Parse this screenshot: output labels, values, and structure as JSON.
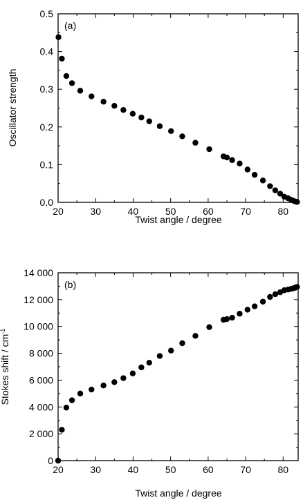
{
  "chart_data": [
    {
      "type": "scatter",
      "panel_label": "(a)",
      "xlabel": "Twist angle / degree",
      "ylabel": "Oscillator strength",
      "ylabel_sup": "",
      "xlim": [
        20,
        84
      ],
      "ylim": [
        0,
        0.5
      ],
      "x_ticks": [
        20,
        30,
        40,
        50,
        60,
        70,
        80
      ],
      "y_ticks": [
        0.0,
        0.1,
        0.2,
        0.3,
        0.4,
        0.5
      ],
      "x_tick_labels": [
        "20",
        "30",
        "40",
        "50",
        "60",
        "70",
        "80"
      ],
      "y_tick_labels": [
        "0.0",
        "0.1",
        "0.2",
        "0.3",
        "0.4",
        "0.5"
      ],
      "grid": false,
      "marker_color": "#000000",
      "points": [
        [
          20.1,
          0.438
        ],
        [
          21.0,
          0.381
        ],
        [
          22.2,
          0.335
        ],
        [
          23.7,
          0.316
        ],
        [
          25.9,
          0.296
        ],
        [
          28.9,
          0.281
        ],
        [
          32.1,
          0.267
        ],
        [
          35.0,
          0.256
        ],
        [
          37.4,
          0.245
        ],
        [
          39.9,
          0.235
        ],
        [
          42.2,
          0.225
        ],
        [
          44.3,
          0.215
        ],
        [
          47.1,
          0.202
        ],
        [
          50.1,
          0.189
        ],
        [
          53.1,
          0.175
        ],
        [
          56.6,
          0.158
        ],
        [
          60.3,
          0.141
        ],
        [
          64.1,
          0.122
        ],
        [
          65.0,
          0.119
        ],
        [
          66.4,
          0.112
        ],
        [
          68.4,
          0.103
        ],
        [
          70.5,
          0.087
        ],
        [
          72.4,
          0.073
        ],
        [
          74.6,
          0.058
        ],
        [
          76.5,
          0.043
        ],
        [
          77.9,
          0.032
        ],
        [
          79.2,
          0.023
        ],
        [
          80.3,
          0.015
        ],
        [
          81.3,
          0.011
        ],
        [
          82.1,
          0.007
        ],
        [
          82.8,
          0.004
        ],
        [
          83.3,
          0.002
        ],
        [
          83.7,
          0.001
        ]
      ]
    },
    {
      "type": "scatter",
      "panel_label": "(b)",
      "xlabel": "Twist angle / degree",
      "ylabel": "Stokes shift / cm",
      "ylabel_sup": "-1",
      "xlim": [
        20,
        84
      ],
      "ylim": [
        0,
        14000
      ],
      "x_ticks": [
        20,
        30,
        40,
        50,
        60,
        70,
        80
      ],
      "y_ticks": [
        0,
        2000,
        4000,
        6000,
        8000,
        10000,
        12000,
        14000
      ],
      "x_tick_labels": [
        "20",
        "30",
        "40",
        "50",
        "60",
        "70",
        "80"
      ],
      "y_tick_labels": [
        "0",
        "2 000",
        "4 000",
        "6 000",
        "8 000",
        "10 000",
        "12 000",
        "14 000"
      ],
      "grid": false,
      "marker_color": "#000000",
      "points": [
        [
          20.0,
          0
        ],
        [
          21.0,
          2300
        ],
        [
          22.2,
          3950
        ],
        [
          23.7,
          4500
        ],
        [
          25.9,
          5000
        ],
        [
          28.9,
          5300
        ],
        [
          32.1,
          5600
        ],
        [
          35.0,
          5850
        ],
        [
          37.4,
          6150
        ],
        [
          39.9,
          6500
        ],
        [
          42.2,
          6950
        ],
        [
          44.3,
          7300
        ],
        [
          47.1,
          7800
        ],
        [
          50.1,
          8200
        ],
        [
          53.1,
          8750
        ],
        [
          56.6,
          9300
        ],
        [
          60.3,
          9950
        ],
        [
          64.1,
          10500
        ],
        [
          65.0,
          10550
        ],
        [
          66.4,
          10650
        ],
        [
          68.4,
          10950
        ],
        [
          70.5,
          11250
        ],
        [
          72.4,
          11500
        ],
        [
          74.6,
          11850
        ],
        [
          76.5,
          12200
        ],
        [
          77.9,
          12400
        ],
        [
          79.2,
          12550
        ],
        [
          80.3,
          12700
        ],
        [
          81.3,
          12750
        ],
        [
          82.1,
          12800
        ],
        [
          82.8,
          12850
        ],
        [
          83.3,
          12900
        ],
        [
          83.7,
          12950
        ]
      ]
    }
  ]
}
